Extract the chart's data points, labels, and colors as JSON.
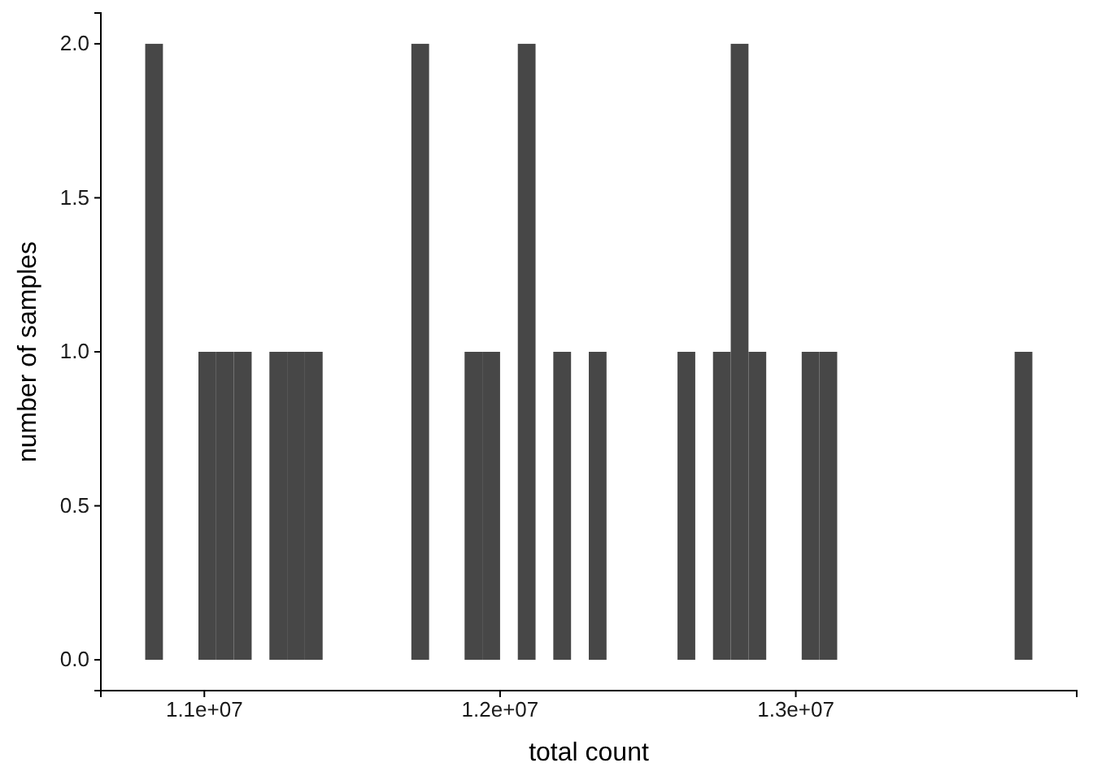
{
  "chart_data": {
    "type": "histogram",
    "xlabel": "total count",
    "ylabel": "number of samples",
    "color": "#474747",
    "bins": [
      10800000,
      10860000,
      10920000,
      10980000,
      11040000,
      11100000,
      11160000,
      11220000,
      11280000,
      11340000,
      11400000,
      11460000,
      11520000,
      11580000,
      11640000,
      11700000,
      11760000,
      11820000,
      11880000,
      11940000,
      12000000,
      12060000,
      12120000,
      12180000,
      12240000,
      12300000,
      12360000,
      12420000,
      12480000,
      12540000,
      12600000,
      12660000,
      12720000,
      12780000,
      12840000,
      12900000,
      12960000,
      13020000,
      13080000,
      13140000,
      13200000,
      13260000,
      13320000,
      13380000,
      13440000,
      13500000,
      13560000,
      13620000,
      13680000,
      13740000,
      13800000
    ],
    "values": [
      2,
      0,
      0,
      1,
      1,
      1,
      0,
      1,
      1,
      1,
      0,
      0,
      0,
      0,
      0,
      2,
      0,
      0,
      1,
      1,
      0,
      2,
      0,
      1,
      0,
      1,
      0,
      0,
      0,
      0,
      1,
      0,
      1,
      2,
      1,
      0,
      0,
      1,
      1,
      0,
      0,
      0,
      0,
      0,
      0,
      0,
      0,
      0,
      0,
      1
    ],
    "xlim": [
      10650000,
      13950000
    ],
    "xticks": [
      {
        "value": 11000000,
        "label": "1.1e+07"
      },
      {
        "value": 12000000,
        "label": "1.2e+07"
      },
      {
        "value": 13000000,
        "label": "1.3e+07"
      }
    ],
    "ylim": [
      -0.1,
      2.1
    ],
    "yticks": [
      {
        "value": 0,
        "label": "0.0"
      },
      {
        "value": 0.5,
        "label": "0.5"
      },
      {
        "value": 1,
        "label": "1.0"
      },
      {
        "value": 1.5,
        "label": "1.5"
      },
      {
        "value": 2,
        "label": "2.0"
      }
    ],
    "grid": false
  }
}
